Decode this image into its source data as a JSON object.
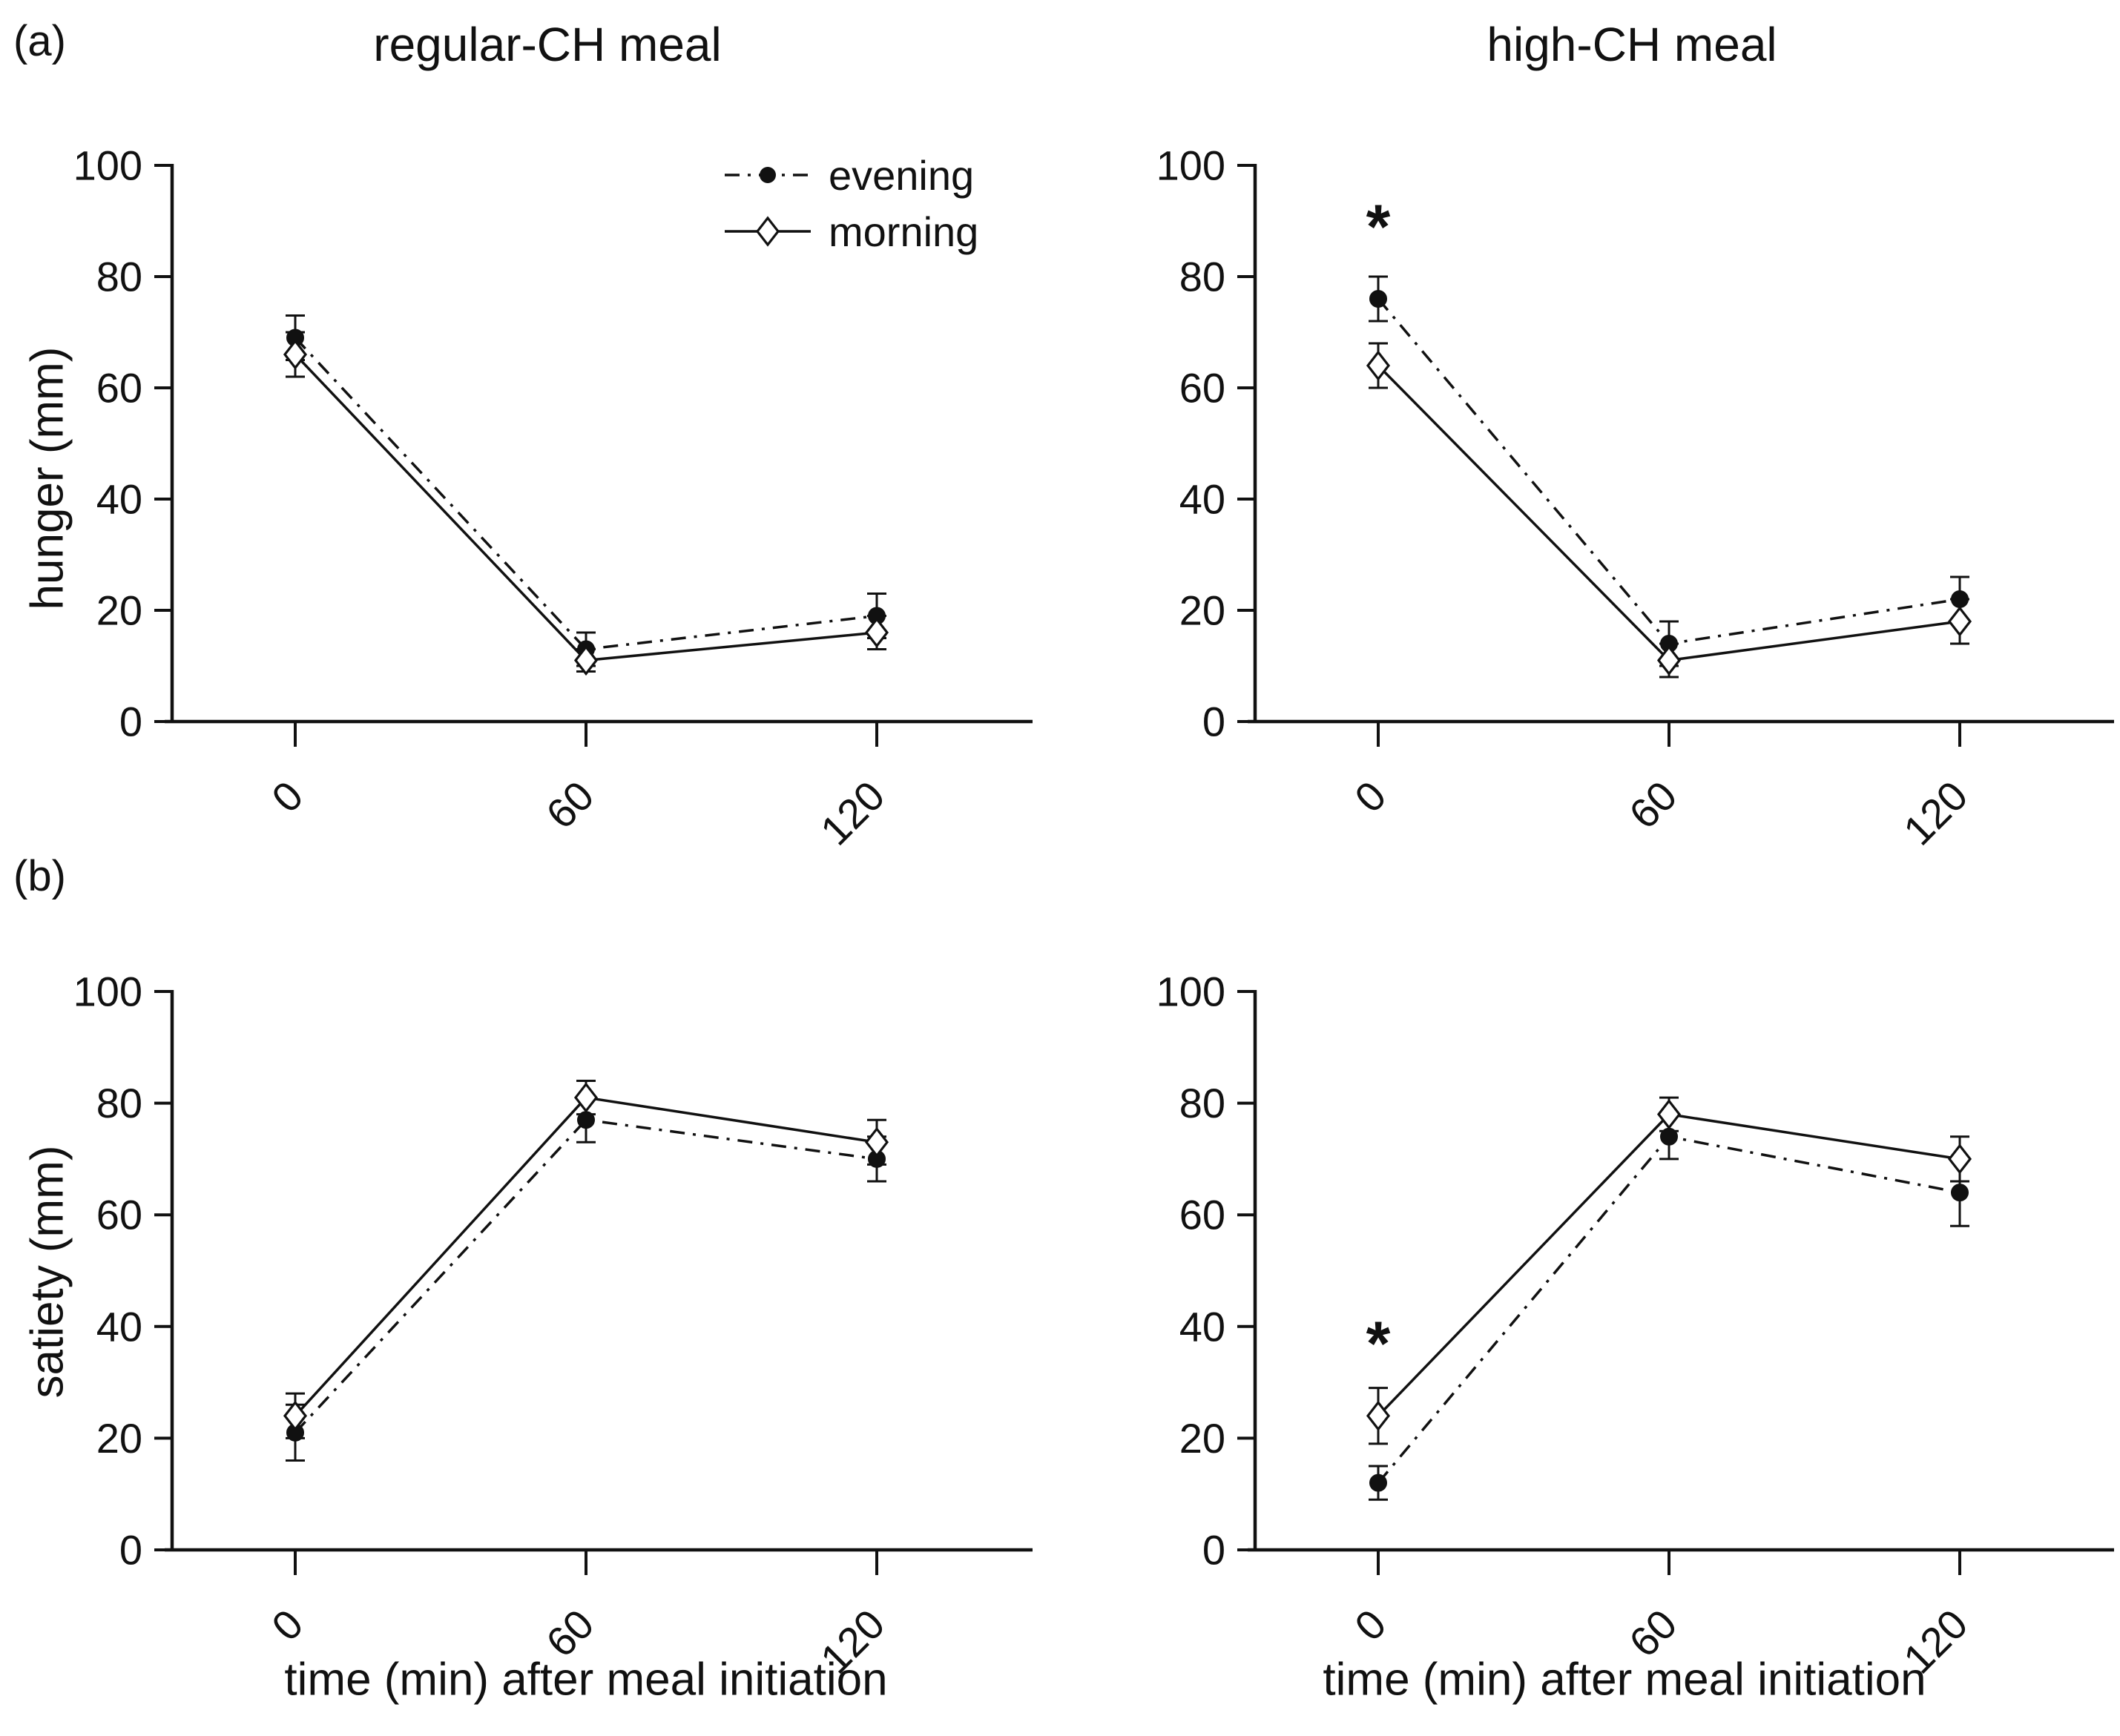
{
  "figure": {
    "panel_a_label": "(a)",
    "panel_b_label": "(b)",
    "column_titles": [
      "regular-CH meal",
      "high-CH meal"
    ],
    "y_axis_labels": [
      "hunger (mm)",
      "satiety (mm)"
    ],
    "x_axis_label": "time (min) after meal initiation",
    "significance_symbol": "*",
    "colors": {
      "ink": "#111111",
      "background": "#ffffff"
    }
  },
  "legend": {
    "position": "inside-top-right-of-first-plot",
    "items": [
      {
        "label": "evening",
        "marker": "filled-circle",
        "line_style": "dash-dot"
      },
      {
        "label": "morning",
        "marker": "open-diamond",
        "line_style": "solid"
      }
    ]
  },
  "chart_data": [
    {
      "type": "line",
      "panel": "a",
      "meal": "regular-CH meal",
      "ylabel": "hunger (mm)",
      "x": [
        0,
        60,
        120
      ],
      "x_tick_labels": [
        "0",
        "60",
        "120"
      ],
      "ylim": [
        0,
        100
      ],
      "yticks": [
        0,
        20,
        40,
        60,
        80,
        100
      ],
      "grid": false,
      "series": [
        {
          "name": "evening",
          "marker": "filled-circle",
          "line_style": "dash-dot",
          "values": [
            69,
            13,
            19
          ],
          "errors": [
            4,
            3,
            4
          ]
        },
        {
          "name": "morning",
          "marker": "open-diamond",
          "line_style": "solid",
          "values": [
            66,
            11,
            16
          ],
          "errors": [
            4,
            2,
            3
          ]
        }
      ],
      "annotations": []
    },
    {
      "type": "line",
      "panel": "a",
      "meal": "high-CH meal",
      "ylabel": "hunger (mm)",
      "x": [
        0,
        60,
        120
      ],
      "x_tick_labels": [
        "0",
        "60",
        "120"
      ],
      "ylim": [
        0,
        100
      ],
      "yticks": [
        0,
        20,
        40,
        60,
        80,
        100
      ],
      "grid": false,
      "series": [
        {
          "name": "evening",
          "marker": "filled-circle",
          "line_style": "dash-dot",
          "values": [
            76,
            14,
            22
          ],
          "errors": [
            4,
            4,
            4
          ]
        },
        {
          "name": "morning",
          "marker": "open-diamond",
          "line_style": "solid",
          "values": [
            64,
            11,
            18
          ],
          "errors": [
            4,
            3,
            4
          ]
        }
      ],
      "annotations": [
        {
          "symbol": "*",
          "x": 0,
          "y": 89
        }
      ]
    },
    {
      "type": "line",
      "panel": "b",
      "meal": "regular-CH meal",
      "ylabel": "satiety (mm)",
      "x": [
        0,
        60,
        120
      ],
      "x_tick_labels": [
        "0",
        "60",
        "120"
      ],
      "ylim": [
        0,
        100
      ],
      "yticks": [
        0,
        20,
        40,
        60,
        80,
        100
      ],
      "grid": false,
      "series": [
        {
          "name": "evening",
          "marker": "filled-circle",
          "line_style": "dash-dot",
          "values": [
            21,
            77,
            70
          ],
          "errors": [
            5,
            4,
            4
          ]
        },
        {
          "name": "morning",
          "marker": "open-diamond",
          "line_style": "solid",
          "values": [
            24,
            81,
            73
          ],
          "errors": [
            4,
            3,
            4
          ]
        }
      ],
      "annotations": []
    },
    {
      "type": "line",
      "panel": "b",
      "meal": "high-CH meal",
      "ylabel": "satiety (mm)",
      "x": [
        0,
        60,
        120
      ],
      "x_tick_labels": [
        "0",
        "60",
        "120"
      ],
      "ylim": [
        0,
        100
      ],
      "yticks": [
        0,
        20,
        40,
        60,
        80,
        100
      ],
      "grid": false,
      "series": [
        {
          "name": "evening",
          "marker": "filled-circle",
          "line_style": "dash-dot",
          "values": [
            12,
            74,
            64
          ],
          "errors": [
            3,
            4,
            6
          ]
        },
        {
          "name": "morning",
          "marker": "open-diamond",
          "line_style": "solid",
          "values": [
            24,
            78,
            70
          ],
          "errors": [
            5,
            3,
            4
          ]
        }
      ],
      "annotations": [
        {
          "symbol": "*",
          "x": 0,
          "y": 37
        }
      ]
    }
  ]
}
